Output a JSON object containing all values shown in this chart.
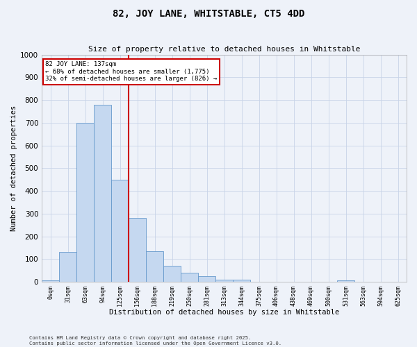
{
  "title1": "82, JOY LANE, WHITSTABLE, CT5 4DD",
  "title2": "Size of property relative to detached houses in Whitstable",
  "xlabel": "Distribution of detached houses by size in Whitstable",
  "ylabel": "Number of detached properties",
  "annotation_line1": "82 JOY LANE: 137sqm",
  "annotation_line2": "← 68% of detached houses are smaller (1,775)",
  "annotation_line3": "32% of semi-detached houses are larger (826) →",
  "footnote1": "Contains HM Land Registry data © Crown copyright and database right 2025.",
  "footnote2": "Contains public sector information licensed under the Open Government Licence v3.0.",
  "bar_color": "#c5d8f0",
  "bar_edge_color": "#6699cc",
  "vline_color": "#cc0000",
  "annotation_box_color": "#cc0000",
  "bg_color": "#eef2f9",
  "grid_color": "#c8d4e8",
  "categories": [
    "0sqm",
    "31sqm",
    "63sqm",
    "94sqm",
    "125sqm",
    "156sqm",
    "188sqm",
    "219sqm",
    "250sqm",
    "281sqm",
    "313sqm",
    "344sqm",
    "375sqm",
    "406sqm",
    "438sqm",
    "469sqm",
    "500sqm",
    "531sqm",
    "563sqm",
    "594sqm",
    "625sqm"
  ],
  "values": [
    5,
    130,
    700,
    780,
    450,
    280,
    135,
    70,
    40,
    25,
    10,
    10,
    0,
    0,
    0,
    0,
    0,
    5,
    0,
    0,
    0
  ],
  "ylim": [
    0,
    1000
  ],
  "yticks": [
    0,
    100,
    200,
    300,
    400,
    500,
    600,
    700,
    800,
    900,
    1000
  ],
  "vline_x": 4.5,
  "figwidth": 6.0,
  "figheight": 5.0,
  "dpi": 100
}
